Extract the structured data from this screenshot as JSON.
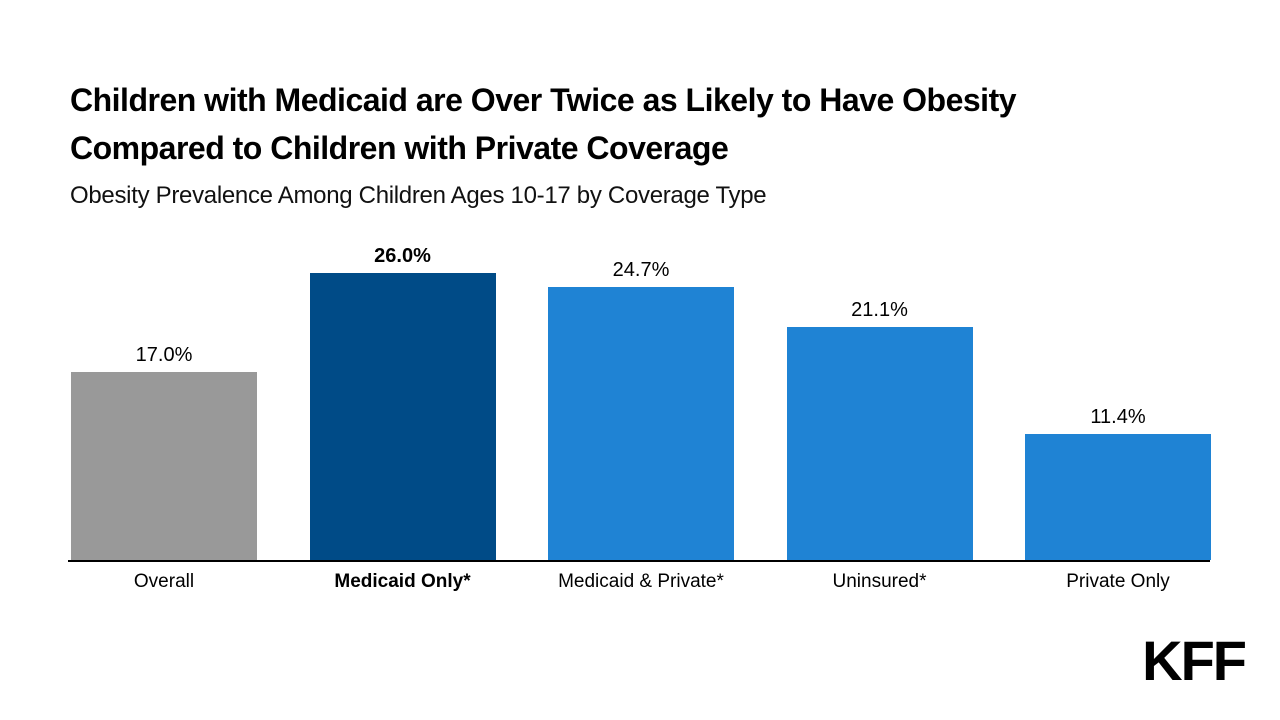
{
  "page": {
    "background_color": "#ffffff",
    "text_color": "#000000"
  },
  "header": {
    "title_line1": "Children with Medicaid are Over Twice as Likely to Have Obesity",
    "title_line2": "Compared to Children with Private Coverage",
    "subtitle": "Obesity Prevalence Among Children Ages 10-17 by Coverage Type"
  },
  "chart_data": {
    "type": "bar",
    "title": "Children with Medicaid are Over Twice as Likely to Have Obesity Compared to Children with Private Coverage",
    "subtitle": "Obesity Prevalence Among Children Ages 10-17 by Coverage Type",
    "categories": [
      "Overall",
      "Medicaid Only*",
      "Medicaid & Private*",
      "Uninsured*",
      "Private Only"
    ],
    "values": [
      17.0,
      26.0,
      24.7,
      21.1,
      11.4
    ],
    "value_labels": [
      "17.0%",
      "26.0%",
      "24.7%",
      "21.1%",
      "11.4%"
    ],
    "bar_colors": [
      "#999999",
      "#004B87",
      "#1F83D4",
      "#1F83D4",
      "#1F83D4"
    ],
    "emphasized": [
      false,
      true,
      false,
      false,
      false
    ],
    "xlabel": "",
    "ylabel": "",
    "ylim": [
      0,
      28
    ],
    "grid": false,
    "y_axis_visible": false,
    "x_axis_color": "#000000",
    "legend_position": "none"
  },
  "branding": {
    "logo_text": "KFF",
    "logo_color": "#000000"
  }
}
